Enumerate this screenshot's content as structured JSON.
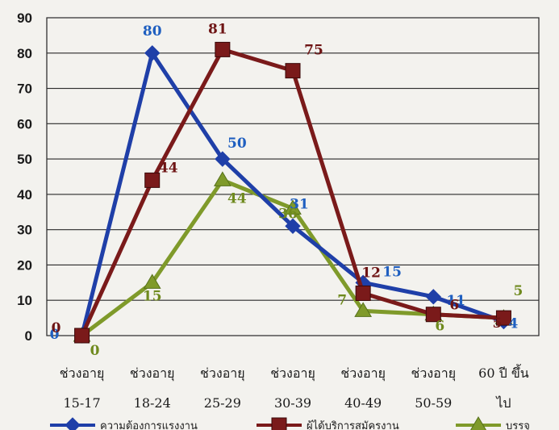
{
  "chart_data": {
    "type": "line",
    "title": "",
    "xlabel": "",
    "ylabel": "",
    "ylim": [
      0,
      90
    ],
    "yticks": [
      0,
      10,
      20,
      30,
      40,
      50,
      60,
      70,
      80,
      90
    ],
    "grid": true,
    "legend_position": "bottom",
    "categories": [
      [
        "ช่วงอายุ",
        "15-17"
      ],
      [
        "ช่วงอายุ",
        "18-24"
      ],
      [
        "ช่วงอายุ",
        "25-29"
      ],
      [
        "ช่วงอายุ",
        "30-39"
      ],
      [
        "ช่วงอายุ",
        "40-49"
      ],
      [
        "ช่วงอายุ",
        "50-59"
      ],
      [
        "60 ปี ขึ้น",
        "ไป"
      ]
    ],
    "series": [
      {
        "name": "ความต้องการแรงงาน",
        "color": "#1f3fa8",
        "label_color": "#1f5fc0",
        "marker": "diamond",
        "values": [
          0,
          80,
          50,
          31,
          15,
          11,
          4
        ],
        "labels": [
          "0",
          "80",
          "50",
          "31",
          "15",
          "11",
          "4"
        ]
      },
      {
        "name": "ผู้ได้บริการสมัครงาน",
        "color": "#7a1a1a",
        "label_color": "#6e1414",
        "marker": "square",
        "values": [
          0,
          44,
          81,
          75,
          12,
          6,
          5
        ],
        "labels": [
          "0",
          "44",
          "81",
          "75",
          "12",
          "6",
          "5"
        ]
      },
      {
        "name": "บรรจุ",
        "color": "#7f9a2a",
        "label_color": "#6f8a1e",
        "marker": "triangle",
        "values": [
          0,
          15,
          44,
          36,
          7,
          6,
          5
        ],
        "labels": [
          "0",
          "15",
          "44",
          "36",
          "7",
          "6",
          "5"
        ]
      }
    ]
  }
}
